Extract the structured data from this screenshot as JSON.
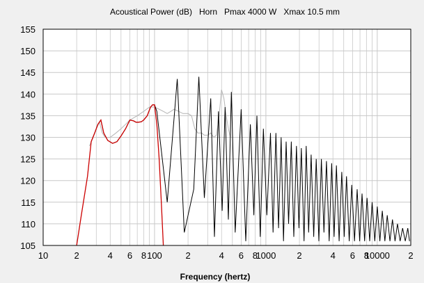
{
  "chart_data": {
    "type": "line",
    "title": "Acoustical Power (dB)   Horn   Pmax 4000 W   Xmax 10.5 mm",
    "xlabel": "Frequency (hertz)",
    "ylabel": "",
    "x_scale": "log",
    "xlim": [
      10,
      20000
    ],
    "ylim": [
      105,
      155
    ],
    "grid": true,
    "y_ticks": [
      105,
      110,
      115,
      120,
      125,
      130,
      135,
      140,
      145,
      150,
      155
    ],
    "x_ticks": [
      {
        "value": 10,
        "label": "10"
      },
      {
        "value": 20,
        "label": "2"
      },
      {
        "value": 40,
        "label": "4"
      },
      {
        "value": 60,
        "label": "6"
      },
      {
        "value": 80,
        "label": "8"
      },
      {
        "value": 100,
        "label": "100"
      },
      {
        "value": 200,
        "label": "2"
      },
      {
        "value": 400,
        "label": "4"
      },
      {
        "value": 600,
        "label": "6"
      },
      {
        "value": 800,
        "label": "8"
      },
      {
        "value": 1000,
        "label": "1000"
      },
      {
        "value": 2000,
        "label": "2"
      },
      {
        "value": 4000,
        "label": "4"
      },
      {
        "value": 6000,
        "label": "6"
      },
      {
        "value": 8000,
        "label": "8"
      },
      {
        "value": 10000,
        "label": "10000"
      },
      {
        "value": 20000,
        "label": "2"
      }
    ],
    "colors": {
      "black": "#000000",
      "red": "#cc0000",
      "gray": "#b4b4b4",
      "grid": "#c8c8c8",
      "background": "#ffffff"
    },
    "series": [
      {
        "color": "#cc0000",
        "x": [
          20,
          22,
          25,
          27,
          29,
          31,
          33,
          35,
          38,
          42,
          46,
          50,
          55,
          60,
          65,
          68,
          72,
          76,
          80,
          86,
          92,
          96,
          100,
          105,
          110,
          115,
          120
        ],
        "y": [
          105,
          112,
          121,
          129,
          131,
          133,
          134,
          131,
          129.3,
          128.6,
          129,
          130.3,
          132,
          134,
          133.8,
          133.5,
          133.5,
          133.6,
          134,
          135,
          137,
          137.5,
          137.5,
          133,
          125,
          115,
          105
        ]
      },
      {
        "color": "#000000",
        "x": [
          27,
          29,
          31,
          33,
          35,
          38,
          42,
          46,
          50,
          55,
          60,
          65,
          68,
          72,
          76,
          80,
          86,
          92,
          96,
          100,
          105
        ],
        "y": [
          129,
          131,
          133,
          134,
          131,
          129.3,
          128.6,
          129,
          130.3,
          132,
          134,
          133.8,
          133.5,
          133.5,
          133.6,
          134,
          135,
          137,
          137.5,
          137.5,
          136
        ],
        "peaks": [
          [
            160,
            143.5
          ],
          [
            250,
            144
          ],
          [
            320,
            139
          ],
          [
            375,
            136
          ],
          [
            430,
            137
          ],
          [
            490,
            140.5
          ],
          [
            600,
            136.5
          ],
          [
            725,
            133
          ],
          [
            830,
            135
          ],
          [
            950,
            132
          ],
          [
            1100,
            131
          ],
          [
            1230,
            131
          ],
          [
            1370,
            130
          ],
          [
            1520,
            129
          ],
          [
            1690,
            129
          ],
          [
            1880,
            128
          ],
          [
            2080,
            127.5
          ],
          [
            2300,
            128
          ],
          [
            2550,
            126
          ],
          [
            2830,
            125
          ],
          [
            3150,
            125
          ],
          [
            3500,
            124.5
          ],
          [
            3900,
            124
          ],
          [
            4300,
            123.5
          ],
          [
            4800,
            122
          ],
          [
            5300,
            121
          ],
          [
            5900,
            119
          ],
          [
            6600,
            118
          ],
          [
            7300,
            117
          ],
          [
            8100,
            116
          ],
          [
            9000,
            115
          ],
          [
            10000,
            114
          ],
          [
            11100,
            113
          ],
          [
            12300,
            112
          ],
          [
            13700,
            111
          ],
          [
            15200,
            110
          ],
          [
            16900,
            109
          ],
          [
            18800,
            109
          ]
        ],
        "troughs": [
          [
            130,
            115
          ],
          [
            185,
            108
          ],
          [
            225,
            118
          ],
          [
            280,
            116
          ],
          [
            345,
            107
          ],
          [
            405,
            113
          ],
          [
            460,
            111
          ],
          [
            530,
            108
          ],
          [
            660,
            106
          ],
          [
            780,
            112
          ],
          [
            890,
            107
          ],
          [
            1020,
            112
          ],
          [
            1160,
            108
          ],
          [
            1300,
            109
          ],
          [
            1440,
            106
          ],
          [
            1600,
            110
          ],
          [
            1780,
            107
          ],
          [
            1980,
            109
          ],
          [
            2200,
            106
          ],
          [
            2420,
            108
          ],
          [
            2690,
            107
          ],
          [
            2990,
            106
          ],
          [
            3320,
            108
          ],
          [
            3700,
            106
          ],
          [
            4100,
            107
          ],
          [
            4550,
            106
          ],
          [
            5050,
            107
          ],
          [
            5600,
            106
          ],
          [
            6250,
            106
          ],
          [
            6950,
            106
          ],
          [
            7700,
            106
          ],
          [
            8550,
            106
          ],
          [
            9500,
            106
          ],
          [
            10550,
            106
          ],
          [
            11700,
            106
          ],
          [
            13000,
            106
          ],
          [
            14450,
            106
          ],
          [
            16050,
            106
          ],
          [
            17850,
            106
          ],
          [
            19500,
            106
          ]
        ]
      },
      {
        "color": "#b4b4b4",
        "x": [
          26,
          28,
          30,
          32,
          34,
          36,
          40,
          45,
          50,
          55,
          60,
          70,
          80,
          90,
          100,
          110,
          120,
          130,
          140,
          150,
          165,
          180,
          200,
          215,
          230,
          245,
          255,
          265,
          280,
          300,
          320,
          340,
          360,
          380,
          400,
          420,
          440,
          460,
          480
        ],
        "y": [
          128,
          130,
          132,
          133.5,
          131,
          130,
          130,
          131,
          132,
          133,
          134,
          135,
          136,
          137,
          137,
          136.5,
          136,
          135.5,
          136,
          136.5,
          136,
          135.5,
          135.5,
          135,
          132,
          131,
          131,
          131,
          130.5,
          130.5,
          131,
          130,
          130.5,
          135,
          141,
          139,
          135,
          132,
          130
        ]
      }
    ]
  }
}
